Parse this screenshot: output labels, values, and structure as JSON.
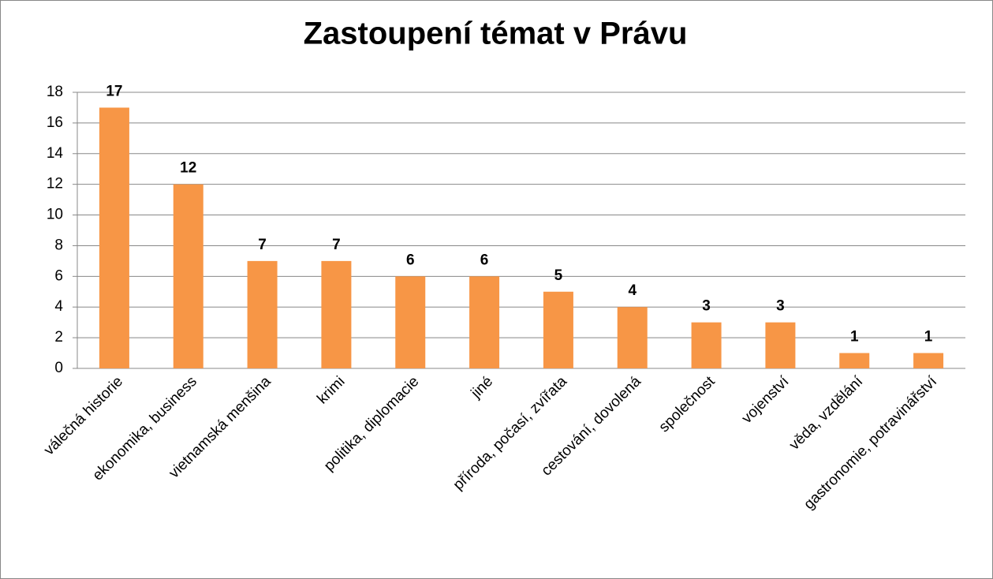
{
  "chart_data": {
    "type": "bar",
    "title": "Zastoupení témat v Právu",
    "categories": [
      "válečná historie",
      "ekonomika, business",
      "vietnamská menšina",
      "krimi",
      "politika, diplomacie",
      "jiné",
      "příroda, počasí, zvířata",
      "cestování, dovolená",
      "společnost",
      "vojenství",
      "věda, vzdělání",
      "gastronomie, potravinářství"
    ],
    "values": [
      17,
      12,
      7,
      7,
      6,
      6,
      5,
      4,
      3,
      3,
      1,
      1
    ],
    "color": "#f79646",
    "ylim": [
      0,
      18
    ],
    "yticks": [
      0,
      2,
      4,
      6,
      8,
      10,
      12,
      14,
      16,
      18
    ],
    "grid": true
  }
}
